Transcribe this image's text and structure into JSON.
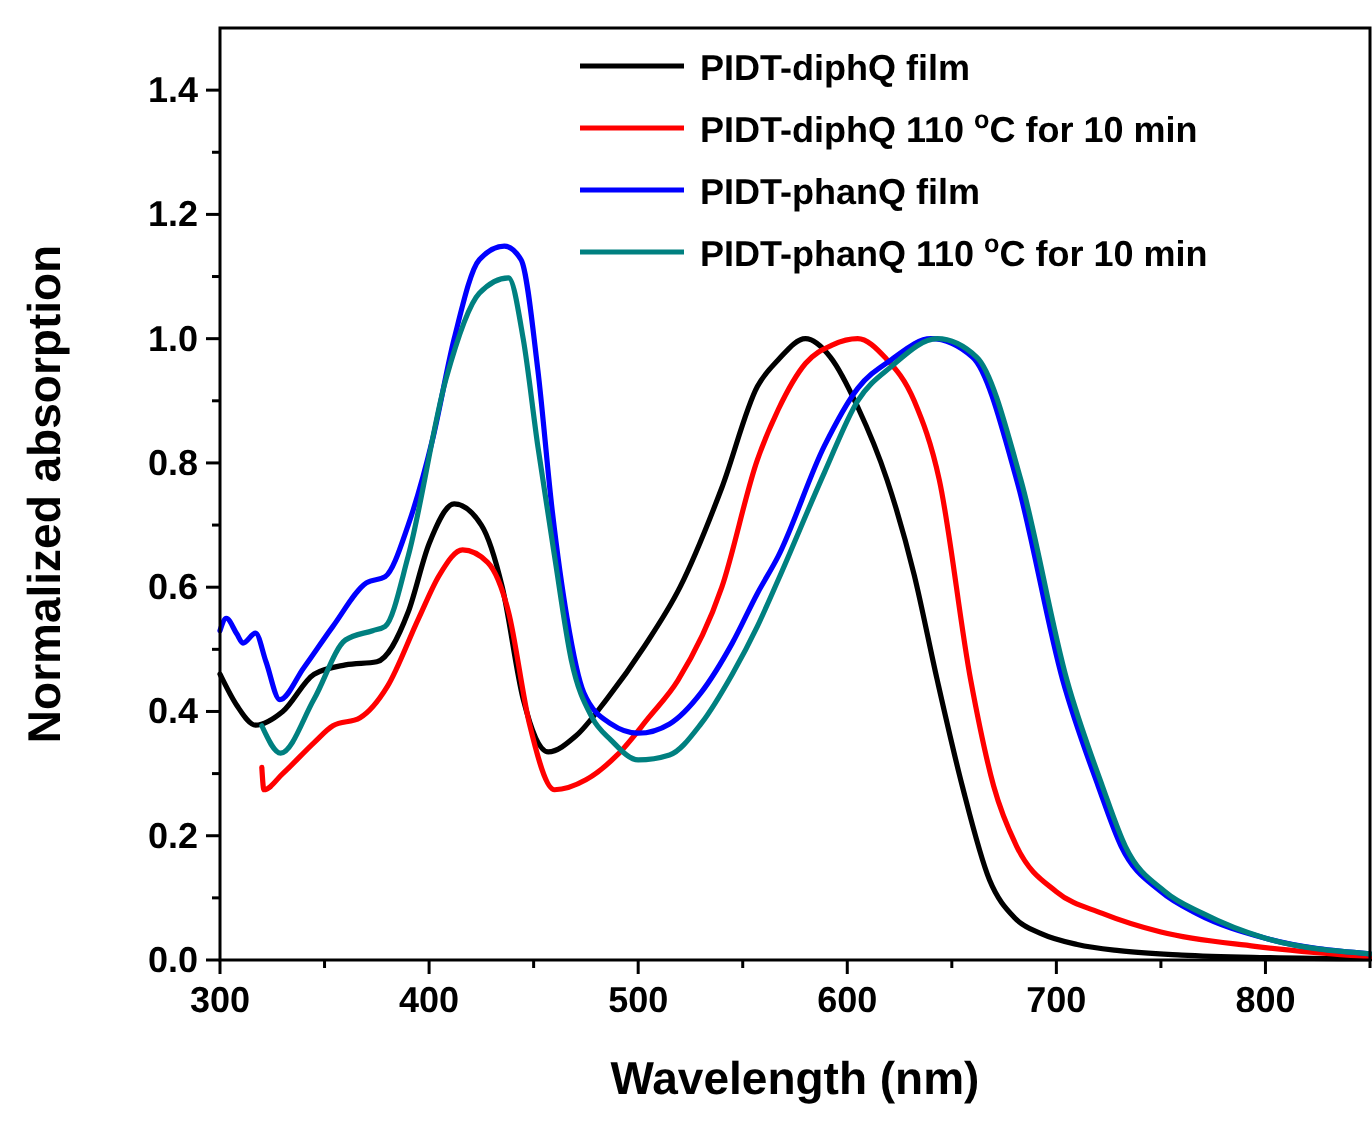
{
  "chart_data": {
    "type": "line",
    "xlabel": "Wavelength (nm)",
    "ylabel": "Normalized absorption",
    "xlim": [
      300,
      850
    ],
    "ylim": [
      0,
      1.5
    ],
    "xticks": [
      300,
      {
        "value": 350,
        "label": null
      },
      400,
      {
        "value": 450,
        "label": null
      },
      500,
      {
        "value": 550,
        "label": null
      },
      600,
      {
        "value": 650,
        "label": null
      },
      700,
      {
        "value": 750,
        "label": null
      },
      800,
      {
        "value": 850,
        "label": null
      }
    ],
    "yticks": [
      {
        "value": 0,
        "label": "0.0"
      },
      {
        "value": 0.1,
        "label": null
      },
      0.2,
      {
        "value": 0.3,
        "label": null
      },
      0.4,
      {
        "value": 0.5,
        "label": null
      },
      0.6,
      {
        "value": 0.7,
        "label": null
      },
      0.8,
      {
        "value": 0.9,
        "label": null
      },
      {
        "value": 1,
        "label": "1.0"
      },
      {
        "value": 1.1,
        "label": null
      },
      1.2,
      {
        "value": 1.3,
        "label": null
      },
      1.4
    ],
    "legend": "top right",
    "grid": false,
    "marker": "none",
    "line_style": "solid",
    "series": [
      {
        "name": "PIDT-diphQ film",
        "color": "#000000",
        "x": [
          300,
          308,
          317,
          330,
          345,
          360,
          375,
          390,
          400,
          412,
          425,
          435,
          445,
          457,
          470,
          485,
          503,
          520,
          540,
          557,
          567,
          580,
          592,
          605,
          619,
          632,
          643,
          655,
          668,
          680,
          693,
          710,
          730,
          760,
          800,
          850
        ],
        "values": [
          0.46,
          0.41,
          0.378,
          0.4,
          0.46,
          0.475,
          0.48,
          0.56,
          0.67,
          0.734,
          0.7,
          0.6,
          0.42,
          0.335,
          0.36,
          0.42,
          0.505,
          0.6,
          0.76,
          0.923,
          0.966,
          1.0,
          0.97,
          0.89,
          0.773,
          0.62,
          0.451,
          0.28,
          0.129,
          0.068,
          0.042,
          0.025,
          0.015,
          0.008,
          0.004,
          0.002
        ]
      },
      {
        "name": "PIDT-diphQ 110 $^{o}$C for 10 min",
        "color": "#ff0000",
        "x": [
          320,
          321,
          330,
          345,
          354,
          367,
          380,
          395,
          405,
          416,
          428,
          438,
          448,
          460,
          475,
          490,
          505,
          519,
          540,
          557,
          567,
          580,
          593,
          605,
          618,
          632,
          644,
          659,
          670,
          681,
          700,
          722,
          750,
          795,
          850
        ],
        "values": [
          0.31,
          0.274,
          0.3,
          0.35,
          0.377,
          0.39,
          0.44,
          0.55,
          0.62,
          0.66,
          0.64,
          0.56,
          0.38,
          0.274,
          0.29,
          0.33,
          0.39,
          0.45,
          0.6,
          0.805,
          0.886,
          0.96,
          0.99,
          1.0,
          0.97,
          0.9,
          0.773,
          0.451,
          0.28,
          0.183,
          0.11,
          0.075,
          0.045,
          0.022,
          0.005
        ]
      },
      {
        "name": "PIDT-phanQ film",
        "color": "#0000ff",
        "x": [
          300,
          303,
          308,
          311,
          317,
          322,
          328.6,
          340,
          354,
          370,
          379,
          390,
          401.6,
          412,
          424,
          436,
          444,
          452,
          459,
          466,
          474,
          487,
          500,
          515,
          530,
          545,
          557,
          567,
          589,
          605,
          621,
          640,
          660,
          681,
          703,
          720,
          731,
          750,
          767,
          800,
          850
        ],
        "values": [
          0.53,
          0.55,
          0.525,
          0.51,
          0.526,
          0.48,
          0.419,
          0.47,
          0.537,
          0.607,
          0.617,
          0.7,
          0.837,
          1.0,
          1.127,
          1.149,
          1.127,
          0.95,
          0.72,
          0.55,
          0.43,
          0.38,
          0.365,
          0.38,
          0.43,
          0.51,
          0.59,
          0.65,
          0.827,
          0.92,
          0.966,
          1.0,
          0.97,
          0.773,
          0.451,
          0.28,
          0.183,
          0.11,
          0.075,
          0.035,
          0.01
        ]
      },
      {
        "name": "PIDT-phanQ 110 $^{o}$C for 10 min",
        "color": "#008080",
        "x": [
          320,
          329,
          345,
          360,
          373,
          379,
          390,
          408,
          424,
          438,
          445,
          452,
          460,
          468,
          478,
          487,
          500,
          515,
          530,
          545,
          557,
          567,
          589,
          605,
          621,
          643,
          662,
          683,
          705,
          722,
          733,
          752,
          770,
          800,
          850
        ],
        "values": [
          0.377,
          0.333,
          0.42,
          0.515,
          0.53,
          0.537,
          0.65,
          0.934,
          1.073,
          1.098,
          1.0,
          0.827,
          0.65,
          0.483,
          0.39,
          0.354,
          0.322,
          0.33,
          0.38,
          0.46,
          0.537,
          0.612,
          0.784,
          0.9,
          0.955,
          1.0,
          0.97,
          0.773,
          0.451,
          0.28,
          0.183,
          0.11,
          0.075,
          0.035,
          0.01
        ]
      }
    ]
  }
}
